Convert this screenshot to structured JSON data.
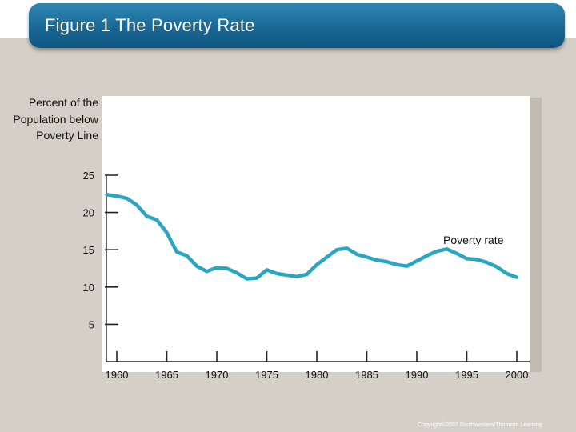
{
  "slide": {
    "title": "Figure 1 The Poverty Rate",
    "copyright": "Copyright©2007 Southwestern/Thomson Learning"
  },
  "colors": {
    "banner": "#1a6896",
    "line": "#2aa6c4",
    "background": "#d4d0c8",
    "plot": "#ffffff"
  },
  "chart_data": {
    "type": "line",
    "title": "",
    "xlabel": "",
    "ylabel": "Percent of the Population below Poverty Line",
    "xlim": [
      1959,
      2001
    ],
    "ylim": [
      0,
      25
    ],
    "x_ticks": [
      1960,
      1965,
      1970,
      1975,
      1980,
      1985,
      1990,
      1995,
      2000
    ],
    "y_ticks": [
      5,
      10,
      15,
      20,
      25
    ],
    "grid": false,
    "legend": "none",
    "series": [
      {
        "name": "Poverty rate",
        "x": [
          1959,
          1960,
          1961,
          1962,
          1963,
          1964,
          1965,
          1966,
          1967,
          1968,
          1969,
          1970,
          1971,
          1972,
          1973,
          1974,
          1975,
          1976,
          1977,
          1978,
          1979,
          1980,
          1981,
          1982,
          1983,
          1984,
          1985,
          1986,
          1987,
          1988,
          1989,
          1990,
          1991,
          1992,
          1993,
          1994,
          1995,
          1996,
          1997,
          1998,
          1999,
          2000
        ],
        "values": [
          22.4,
          22.2,
          21.9,
          21.0,
          19.5,
          19.0,
          17.3,
          14.7,
          14.2,
          12.8,
          12.1,
          12.6,
          12.5,
          11.9,
          11.1,
          11.2,
          12.3,
          11.8,
          11.6,
          11.4,
          11.7,
          13.0,
          14.0,
          15.0,
          15.2,
          14.4,
          14.0,
          13.6,
          13.4,
          13.0,
          12.8,
          13.5,
          14.2,
          14.8,
          15.1,
          14.5,
          13.8,
          13.7,
          13.3,
          12.7,
          11.8,
          11.3
        ]
      }
    ]
  }
}
